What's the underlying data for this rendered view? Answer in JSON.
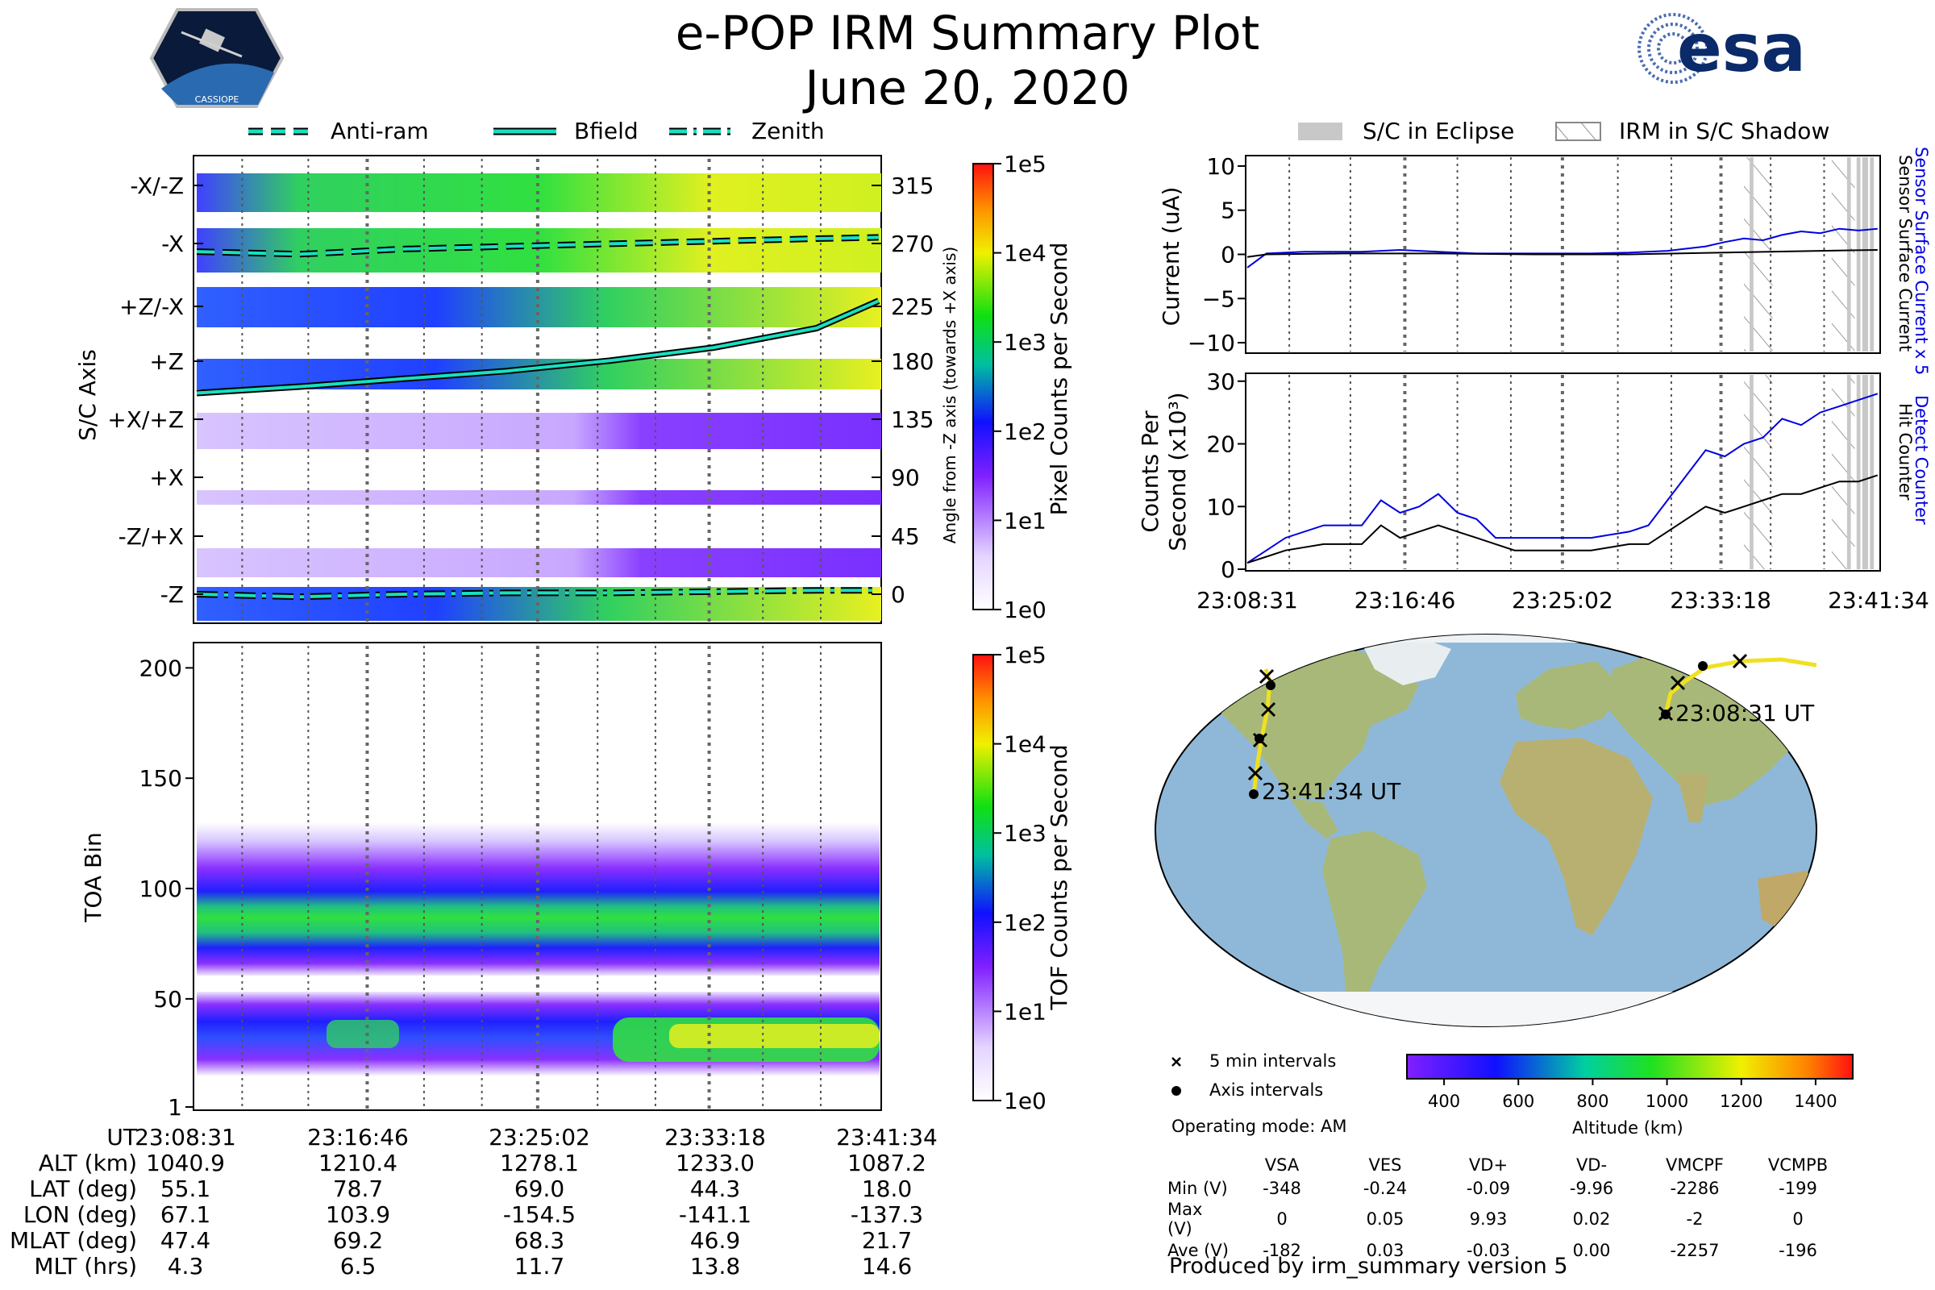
{
  "header": {
    "title": "e-POP IRM Summary Plot",
    "subtitle": "June 20, 2020",
    "left_logo_text": "CASSIOPE",
    "right_logo_text": "esa"
  },
  "colors": {
    "anti_ram": "#18e0c0",
    "bfield": "#18e0c0",
    "zenith": "#18e0c0",
    "sensor_current_x5": "#0000e0",
    "sensor_current": "#000000",
    "detect_counter": "#0000e0",
    "hit_counter": "#000000",
    "orbit_track": "#f0e020",
    "ocean": "#8fb8d8",
    "land": "#a8b878",
    "ice": "#f4f6f8"
  },
  "angle_legend": [
    "Anti-ram",
    "Bfield",
    "Zenith"
  ],
  "shading_legend": [
    "S/C in Eclipse",
    "IRM in S/C Shadow"
  ],
  "chart_data": [
    {
      "type": "heatmap",
      "name": "pixel_counts",
      "ylabel": "S/C Axis",
      "y_categories": [
        "-X/-Z",
        "-X",
        "+Z/-X",
        "+Z",
        "+X/+Z",
        "+X",
        "-Z/+X",
        "-Z"
      ],
      "right_ylabel": "Angle from -Z axis (towards +X axis)",
      "right_ticks": [
        "315",
        "270",
        "225",
        "180",
        "135",
        "90",
        "45",
        "0"
      ],
      "colorbar_label": "Pixel Counts per Second",
      "colorbar_ticks": [
        "1e5",
        "1e4",
        "1e3",
        "1e2",
        "1e1",
        "1e0"
      ],
      "x_range": [
        "23:08:31",
        "23:41:34"
      ],
      "series": [
        {
          "name": "Bfield",
          "x": [
            0,
            5,
            10,
            15,
            20,
            25,
            30,
            33
          ],
          "values": [
            155,
            160,
            166,
            172,
            180,
            190,
            205,
            226
          ]
        },
        {
          "name": "Anti-ram",
          "x": [
            0,
            5,
            10,
            15,
            20,
            25,
            30,
            33
          ],
          "values": [
            264,
            262,
            266,
            268,
            270,
            272,
            274,
            275
          ]
        },
        {
          "name": "Zenith",
          "x": [
            0,
            5,
            10,
            15,
            20,
            25,
            30,
            33
          ],
          "values": [
            0,
            -2,
            0,
            1,
            1,
            2,
            3,
            3
          ]
        }
      ]
    },
    {
      "type": "heatmap",
      "name": "toa",
      "ylabel": "TOA Bin",
      "y_ticks": [
        "200",
        "150",
        "100",
        "50",
        "1"
      ],
      "ylim": [
        1,
        210
      ],
      "colorbar_label": "TOF Counts per Second",
      "colorbar_ticks": [
        "1e5",
        "1e4",
        "1e3",
        "1e2",
        "1e1",
        "1e0"
      ]
    },
    {
      "type": "line",
      "name": "current",
      "ylabel": "Current (uA)",
      "ylim": [
        -11,
        11
      ],
      "y_ticks": [
        "10",
        "5",
        "0",
        "−5",
        "−10"
      ],
      "right_labels": [
        "Sensor Surface Current x 5",
        "Sensor Surface Current"
      ],
      "series": [
        {
          "name": "Sensor Surface Current x 5",
          "x": [
            0,
            1,
            3,
            6,
            8,
            10,
            12,
            14,
            16,
            18,
            20,
            22,
            24,
            25,
            26,
            27,
            28,
            29,
            30,
            31,
            32,
            33
          ],
          "values": [
            -1.5,
            0.1,
            0.3,
            0.3,
            0.5,
            0.3,
            0.1,
            0.1,
            0.1,
            0.1,
            0.2,
            0.4,
            0.9,
            1.4,
            1.8,
            1.6,
            2.2,
            2.6,
            2.4,
            2.9,
            2.7,
            2.9
          ]
        },
        {
          "name": "Sensor Surface Current",
          "x": [
            0,
            1,
            5,
            10,
            15,
            20,
            25,
            30,
            33
          ],
          "values": [
            -0.3,
            0.0,
            0.1,
            0.1,
            0.0,
            0.0,
            0.2,
            0.4,
            0.5
          ]
        }
      ]
    },
    {
      "type": "line",
      "name": "counts",
      "ylabel_line1": "Counts Per",
      "ylabel_line2": "Second (x10³)",
      "ylim": [
        0,
        31
      ],
      "y_ticks": [
        "30",
        "20",
        "10",
        "0"
      ],
      "x_ticks": [
        "23:08:31",
        "23:16:46",
        "23:25:02",
        "23:33:18",
        "23:41:34"
      ],
      "right_labels": [
        "Detect Counter",
        "Hit Counter"
      ],
      "series": [
        {
          "name": "Detect Counter",
          "x": [
            0,
            1,
            2,
            4,
            6,
            7,
            8,
            9,
            10,
            11,
            12,
            13,
            14,
            16,
            18,
            20,
            21,
            22,
            23,
            24,
            25,
            26,
            27,
            28,
            29,
            30,
            31,
            32,
            33
          ],
          "values": [
            1,
            3,
            5,
            7,
            7,
            11,
            9,
            10,
            12,
            9,
            8,
            5,
            5,
            5,
            5,
            6,
            7,
            11,
            15,
            19,
            18,
            20,
            21,
            24,
            23,
            25,
            26,
            27,
            28
          ]
        },
        {
          "name": "Hit Counter",
          "x": [
            0,
            1,
            2,
            4,
            6,
            7,
            8,
            9,
            10,
            11,
            12,
            13,
            14,
            16,
            18,
            20,
            21,
            22,
            23,
            24,
            25,
            26,
            27,
            28,
            29,
            30,
            31,
            32,
            33
          ],
          "values": [
            1,
            2,
            3,
            4,
            4,
            7,
            5,
            6,
            7,
            6,
            5,
            4,
            3,
            3,
            3,
            4,
            4,
            6,
            8,
            10,
            9,
            10,
            11,
            12,
            12,
            13,
            14,
            14,
            15
          ]
        }
      ]
    }
  ],
  "map": {
    "start_label": "23:08:31 UT",
    "end_label": "23:41:34 UT",
    "legend_5min": "5 min intervals",
    "legend_axis": "Axis intervals",
    "operating_mode": "Operating mode: AM",
    "altitude_label": "Altitude (km)",
    "altitude_ticks": [
      "400",
      "600",
      "800",
      "1000",
      "1200",
      "1400"
    ]
  },
  "ephemeris": {
    "labels": [
      "UT",
      "ALT (km)",
      "LAT (deg)",
      "LON (deg)",
      "MLAT (deg)",
      "MLT (hrs)"
    ],
    "columns": [
      [
        "23:08:31",
        "1040.9",
        "55.1",
        "67.1",
        "47.4",
        "4.3"
      ],
      [
        "23:16:46",
        "1210.4",
        "78.7",
        "103.9",
        "69.2",
        "6.5"
      ],
      [
        "23:25:02",
        "1278.1",
        "69.0",
        "-154.5",
        "68.3",
        "11.7"
      ],
      [
        "23:33:18",
        "1233.0",
        "44.3",
        "-141.1",
        "46.9",
        "13.8"
      ],
      [
        "23:41:34",
        "1087.2",
        "18.0",
        "-137.3",
        "21.7",
        "14.6"
      ]
    ]
  },
  "voltages": {
    "headers": [
      "VSA",
      "VES",
      "VD+",
      "VD-",
      "VMCPF",
      "VCMPB"
    ],
    "rows": [
      {
        "label": "Min (V)",
        "values": [
          "-348",
          "-0.24",
          "-0.09",
          "-9.96",
          "-2286",
          "-199"
        ]
      },
      {
        "label": "Max (V)",
        "values": [
          "0",
          "0.05",
          "9.93",
          "0.02",
          "-2",
          "0"
        ]
      },
      {
        "label": "Ave (V)",
        "values": [
          "-182",
          "0.03",
          "-0.03",
          "0.00",
          "-2257",
          "-196"
        ]
      }
    ]
  },
  "footer": "Produced by irm_summary version 5"
}
